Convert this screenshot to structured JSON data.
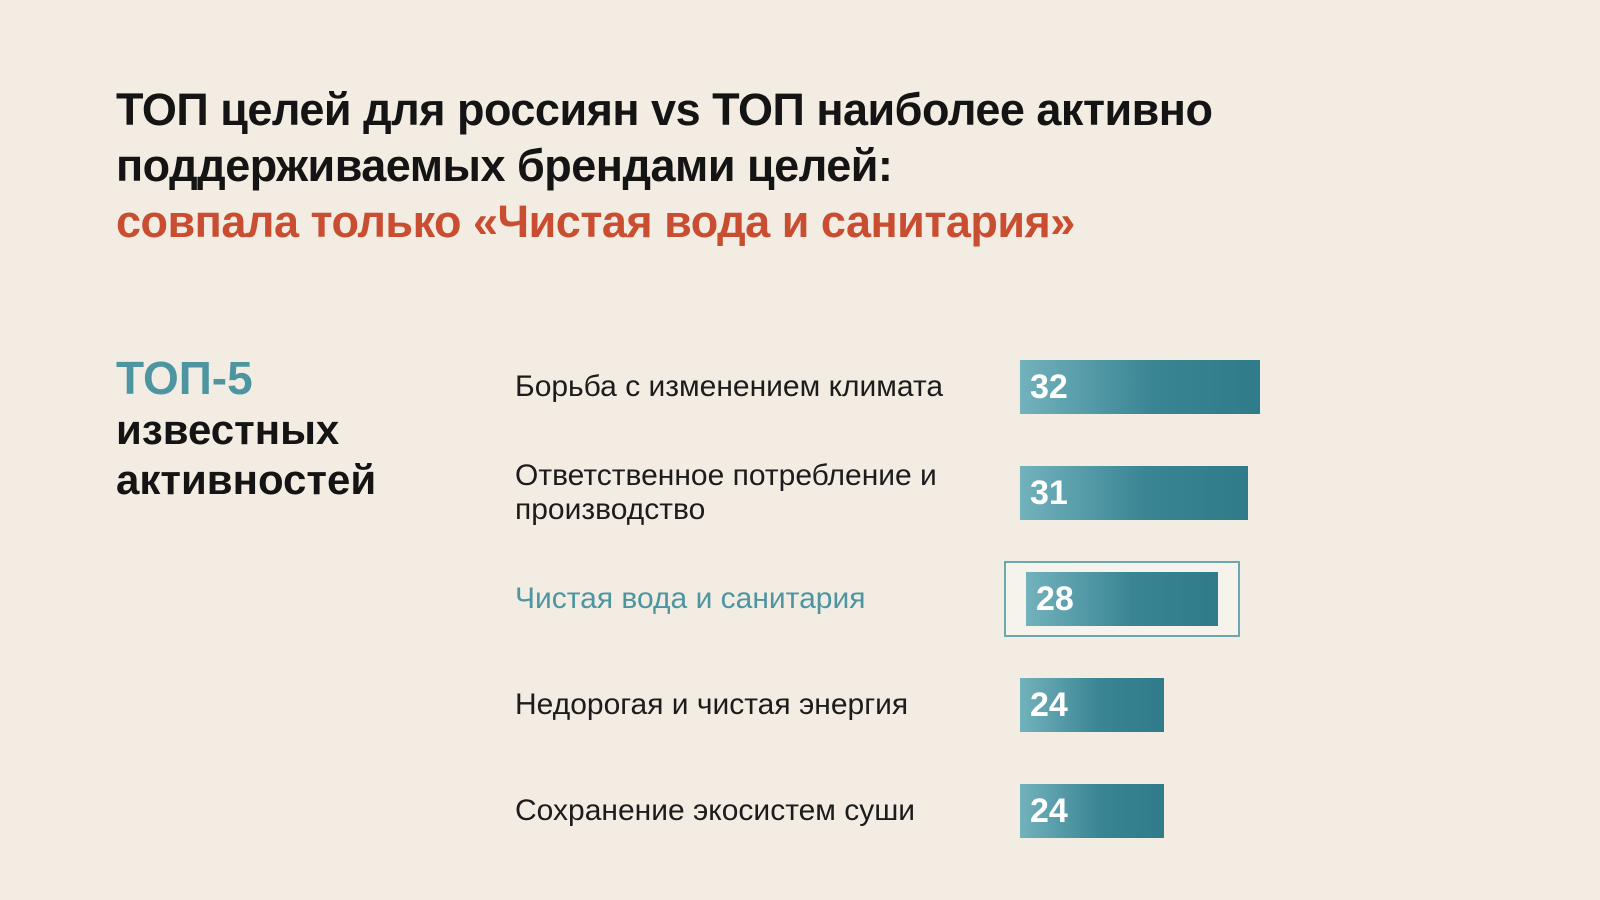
{
  "title": {
    "black_lines": [
      "ТОП целей для россиян vs ТОП наиболее активно",
      "поддерживаемых брендами целей:"
    ],
    "highlight_line": "совпала только «Чистая вода и санитария»"
  },
  "left_panel": {
    "top_label": "ТОП-5",
    "subtitle_lines": [
      "известных",
      "активностей"
    ]
  },
  "colors": {
    "background": "#f2ece2",
    "title_text": "#141414",
    "accent_red": "#c94e31",
    "teal": "#4d95a1",
    "bar_gradient_start": "#72b2bc",
    "bar_gradient_end": "#2f7b8a",
    "bar_value_text": "#ffffff",
    "highlight_border": "#6aa7b2"
  },
  "chart_data": {
    "type": "bar",
    "orientation": "horizontal",
    "categories": [
      "Борьба с изменением климата",
      "Ответственное потребление и производство",
      "Чистая вода и санитария",
      "Недорогая и чистая энергия",
      "Сохранение экосистем суши"
    ],
    "values": [
      32,
      31,
      28,
      24,
      24
    ],
    "highlighted_index": 2,
    "highlighted_category": "Чистая вода и санитария",
    "value_labels_shown": true,
    "xlim": [
      12,
      32
    ],
    "grid": false,
    "legend": "none"
  }
}
